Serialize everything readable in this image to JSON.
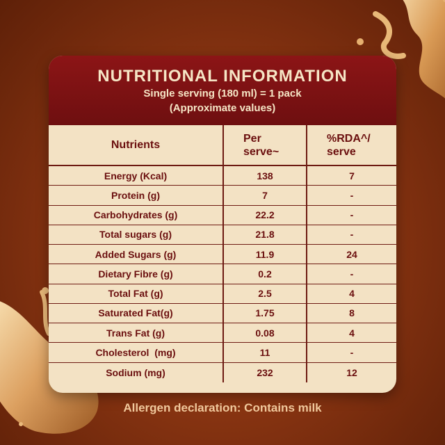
{
  "header": {
    "title": "NUTRITIONAL INFORMATION",
    "subtitle_line1": "Single serving (180 ml) = 1 pack",
    "subtitle_line2": "(Approximate values)"
  },
  "columns": {
    "nutrients": "Nutrients",
    "per_serve_1": "Per",
    "per_serve_2": "serve~",
    "rda_1": "%RDA^/",
    "rda_2": "serve"
  },
  "rows": [
    {
      "nutrient": "Energy (Kcal)",
      "per_serve": "138",
      "rda": "7"
    },
    {
      "nutrient": "Protein (g)",
      "per_serve": "7",
      "rda": "-"
    },
    {
      "nutrient": "Carbohydrates (g)",
      "per_serve": "22.2",
      "rda": "-"
    },
    {
      "nutrient": "Total sugars (g)",
      "per_serve": "21.8",
      "rda": "-"
    },
    {
      "nutrient": "Added Sugars (g)",
      "per_serve": "11.9",
      "rda": "24"
    },
    {
      "nutrient": "Dietary Fibre (g)",
      "per_serve": "0.2",
      "rda": "-"
    },
    {
      "nutrient": "Total Fat (g)",
      "per_serve": "2.5",
      "rda": "4"
    },
    {
      "nutrient": "Saturated Fat(g)",
      "per_serve": "1.75",
      "rda": "8"
    },
    {
      "nutrient": "Trans Fat (g)",
      "per_serve": "0.08",
      "rda": "4"
    },
    {
      "nutrient": "Cholesterol  (mg)",
      "per_serve": "11",
      "rda": "-"
    },
    {
      "nutrient": "Sodium (mg)",
      "per_serve": "232",
      "rda": "12"
    }
  ],
  "footer": {
    "allergen": "Allergen declaration: Contains milk"
  },
  "colors": {
    "background": "#8a3512",
    "header_band": "#7d1213",
    "card": "#f3e2c4",
    "text_dark": "#6a0e0e",
    "footer_text": "#f0c89c"
  },
  "icons": [
    "milk-splash-top-right",
    "milk-splash-bottom-left"
  ]
}
